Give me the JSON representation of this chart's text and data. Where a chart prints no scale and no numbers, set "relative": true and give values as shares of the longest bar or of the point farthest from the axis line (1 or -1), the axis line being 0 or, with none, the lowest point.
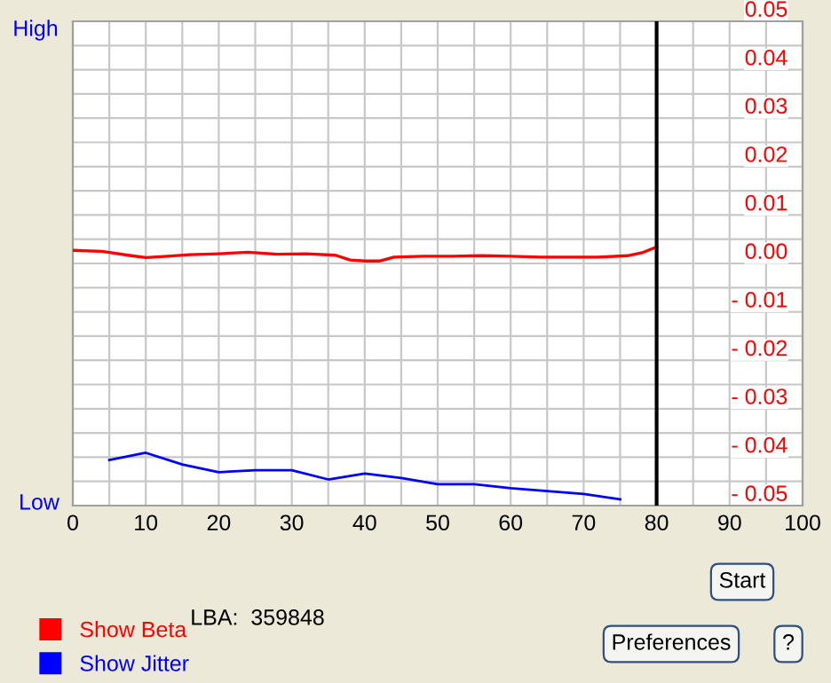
{
  "chart_data": [
    {
      "type": "line",
      "xlim": [
        0,
        100
      ],
      "xticks": [
        0,
        {
          "value": 5,
          "label": null
        },
        10,
        {
          "value": 15,
          "label": null
        },
        20,
        {
          "value": 25,
          "label": null
        },
        30,
        {
          "value": 35,
          "label": null
        },
        40,
        {
          "value": 45,
          "label": null
        },
        50,
        {
          "value": 55,
          "label": null
        },
        60,
        {
          "value": 65,
          "label": null
        },
        70,
        {
          "value": 75,
          "label": null
        },
        80,
        {
          "value": 85,
          "label": null
        },
        90,
        {
          "value": 95,
          "label": null
        },
        100
      ],
      "ylim": [
        -0.05,
        0.05
      ],
      "yticks": [
        {
          "value": -0.05,
          "label": "- 0.05"
        },
        {
          "value": -0.045,
          "label": null
        },
        {
          "value": -0.04,
          "label": "- 0.04"
        },
        {
          "value": -0.035,
          "label": null
        },
        {
          "value": -0.03,
          "label": "- 0.03"
        },
        {
          "value": -0.025,
          "label": null
        },
        {
          "value": -0.02,
          "label": "- 0.02"
        },
        {
          "value": -0.015,
          "label": null
        },
        {
          "value": -0.01,
          "label": "- 0.01"
        },
        {
          "value": -0.005,
          "label": null
        },
        {
          "value": 0,
          "label": "0.00"
        },
        {
          "value": 0.005,
          "label": null
        },
        {
          "value": 0.01,
          "label": "0.01"
        },
        {
          "value": 0.015,
          "label": null
        },
        {
          "value": 0.02,
          "label": "0.02"
        },
        {
          "value": 0.025,
          "label": null
        },
        {
          "value": 0.03,
          "label": "0.03"
        },
        {
          "value": 0.035,
          "label": null
        },
        {
          "value": 0.04,
          "label": "0.04"
        },
        {
          "value": 0.045,
          "label": null
        },
        {
          "value": 0.05,
          "label": "0.05"
        }
      ],
      "grid": true,
      "legend": "bottom left",
      "series": [
        {
          "name": "Show Beta",
          "color": "#ff0000",
          "x": [
            0,
            4,
            8,
            10,
            13,
            16,
            20,
            24,
            28,
            32,
            36,
            38,
            40,
            42,
            44,
            48,
            52,
            56,
            60,
            64,
            68,
            72,
            76,
            78,
            80
          ],
          "values": [
            0.0027,
            0.0025,
            0.0016,
            0.0012,
            0.0015,
            0.0018,
            0.002,
            0.0023,
            0.0019,
            0.002,
            0.0017,
            0.0007,
            0.0005,
            0.0005,
            0.0013,
            0.0015,
            0.0015,
            0.0016,
            0.0015,
            0.0013,
            0.0013,
            0.0013,
            0.0016,
            0.0022,
            0.0034
          ]
        }
      ],
      "ref_lines": [
        {
          "axis": "x",
          "value": 80,
          "color": "#000000"
        }
      ],
      "annotations": [
        "LBA:  359848",
        "Start",
        "Preferences",
        "?"
      ]
    },
    {
      "type": "line",
      "relative": true,
      "xlim": [
        0,
        100
      ],
      "legend": "bottom left",
      "series": [
        {
          "name": "Show Jitter",
          "color": "#0000ff",
          "x": [
            5,
            10,
            15,
            20,
            25,
            30,
            35,
            40,
            45,
            50,
            55,
            60,
            65,
            70,
            75
          ],
          "values": [
            0.862,
            1,
            0.78,
            0.633,
            0.67,
            0.67,
            0.495,
            0.606,
            0.523,
            0.404,
            0.404,
            0.33,
            0.275,
            0.22,
            0.119
          ]
        }
      ],
      "annotations": [
        "High",
        "Low"
      ]
    }
  ]
}
